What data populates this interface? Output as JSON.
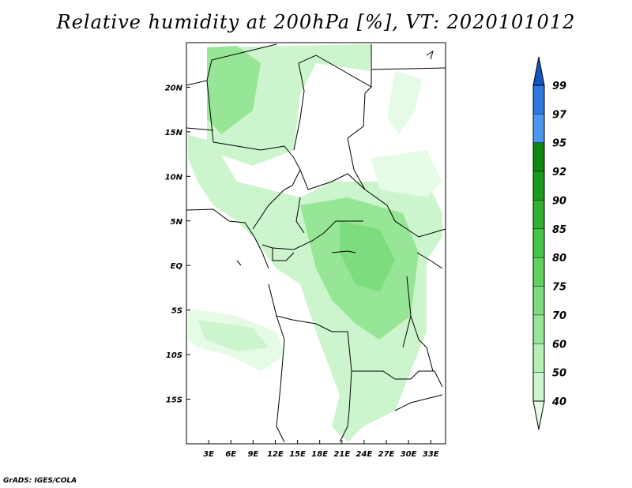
{
  "title": "Relative humidity at 200hPa [%], VT: 2020101012",
  "credit": "GrADS: IGES/COLA",
  "map": {
    "lon_range": [
      0,
      35
    ],
    "lat_range": [
      -20,
      25
    ],
    "xtick_labels": [
      "3E",
      "6E",
      "9E",
      "12E",
      "15E",
      "18E",
      "21E",
      "24E",
      "27E",
      "30E",
      "33E"
    ],
    "xtick_values": [
      3,
      6,
      9,
      12,
      15,
      18,
      21,
      24,
      27,
      30,
      33
    ],
    "ytick_labels": [
      "20N",
      "15N",
      "10N",
      "5N",
      "EQ",
      "5S",
      "10S",
      "15S"
    ],
    "ytick_values": [
      20,
      15,
      10,
      5,
      0,
      -5,
      -10,
      -15
    ]
  },
  "colorbar": {
    "levels": [
      40,
      50,
      60,
      70,
      75,
      80,
      85,
      90,
      92,
      95,
      97,
      99
    ],
    "colors": [
      "#e6fbe6",
      "#cdf5cd",
      "#b4efb4",
      "#97e697",
      "#7ddc7d",
      "#5fd15f",
      "#45c545",
      "#2fb12f",
      "#1a9a1a",
      "#0f860f",
      "#4a98f0",
      "#2a78e0",
      "#1556c0"
    ]
  }
}
